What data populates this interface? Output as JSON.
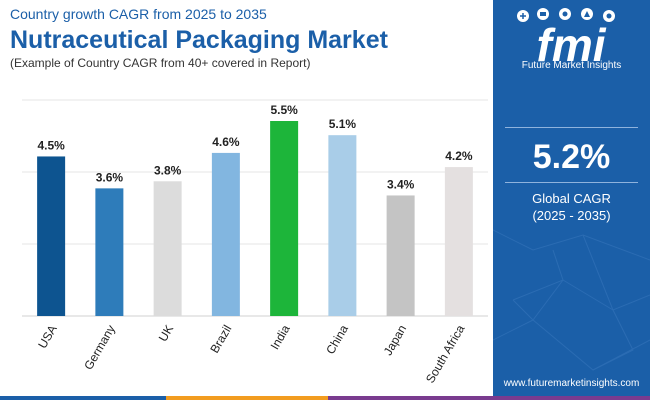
{
  "header": {
    "subtitle": "Country growth CAGR from 2025 to 2035",
    "title": "Nutraceutical Packaging Market",
    "note": "(Example of Country CAGR from 40+ covered in Report)"
  },
  "chart_data": {
    "type": "bar",
    "title": "Nutraceutical Packaging Market",
    "subtitle": "Country growth CAGR from 2025 to 2035",
    "categories": [
      "USA",
      "Germany",
      "UK",
      "Brazil",
      "India",
      "China",
      "Japan",
      "South Africa"
    ],
    "values": [
      4.5,
      3.6,
      3.8,
      4.6,
      5.5,
      5.1,
      3.4,
      4.2
    ],
    "labels": [
      "4.5%",
      "3.6%",
      "3.8%",
      "4.6%",
      "5.5%",
      "5.1%",
      "3.4%",
      "4.2%"
    ],
    "colors": [
      "#0d5490",
      "#2e7cba",
      "#dcdcdc",
      "#82b6e0",
      "#1db53a",
      "#a9cde8",
      "#c4c4c4",
      "#e4e0e0"
    ],
    "unit": "%",
    "ylim": [
      0,
      5.5
    ],
    "grid": true,
    "xlabel": "",
    "ylabel": ""
  },
  "sidebar": {
    "logo_text": "fmi",
    "brand": "Future Market Insights",
    "stat_value": "5.2%",
    "stat_label_1": "Global CAGR",
    "stat_label_2": "(2025 - 2035)",
    "website": "www.futuremarketinsights.com"
  },
  "theme": {
    "brand_blue": "#1b5fa8",
    "stripe": [
      "#1b5fa8",
      "#f29c1f",
      "#7a3b8f"
    ]
  }
}
